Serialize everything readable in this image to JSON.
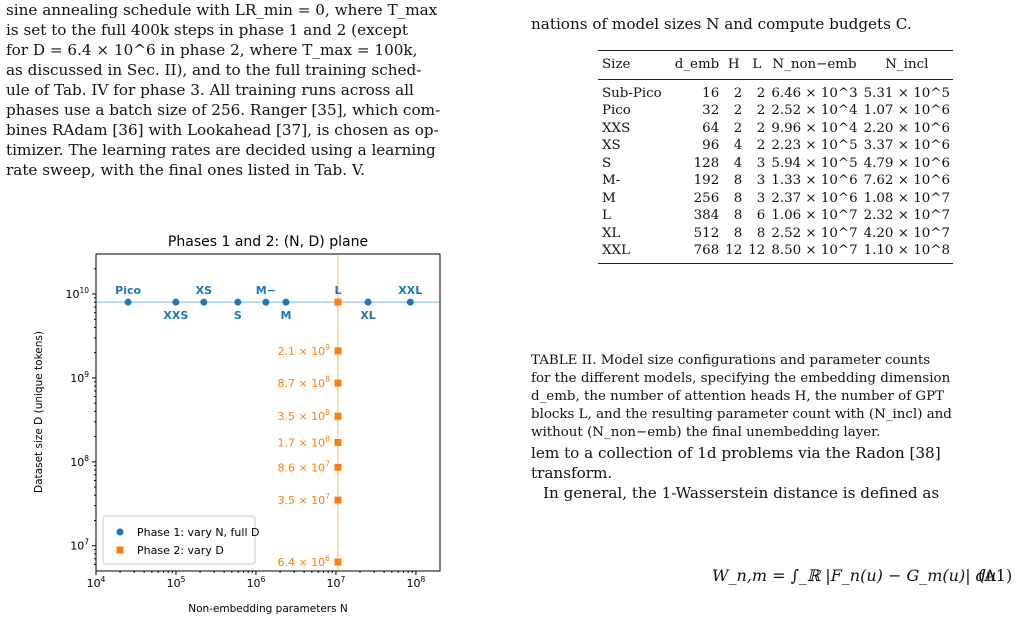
{
  "left_text": [
    "sine annealing schedule with LR_min = 0, where T_max",
    "is set to the full 400k steps in phase 1 and 2 (except",
    "for D = 6.4 × 10^6 in phase 2, where T_max = 100k,",
    "as discussed in Sec. II), and to the full training sched-",
    "ule of Tab. IV for phase 3. All training runs across all",
    "phases use a batch size of 256. Ranger [35], which com-",
    "bines RAdam [36] with Lookahead [37], is chosen as op-",
    "timizer. The learning rates are decided using a learning",
    "rate sweep, with the final ones listed in Tab. V."
  ],
  "right_top_text": "nations of model sizes N and compute budgets C.",
  "table": {
    "headers": [
      "Size",
      "d_emb",
      "H",
      "L",
      "N_non−emb",
      "N_incl"
    ],
    "rows": [
      [
        "Sub-Pico",
        "16",
        "2",
        "2",
        "6.46 × 10^3",
        "5.31 × 10^5"
      ],
      [
        "Pico",
        "32",
        "2",
        "2",
        "2.52 × 10^4",
        "1.07 × 10^6"
      ],
      [
        "XXS",
        "64",
        "2",
        "2",
        "9.96 × 10^4",
        "2.20 × 10^6"
      ],
      [
        "XS",
        "96",
        "4",
        "2",
        "2.23 × 10^5",
        "3.37 × 10^6"
      ],
      [
        "S",
        "128",
        "4",
        "3",
        "5.94 × 10^5",
        "4.79 × 10^6"
      ],
      [
        "M-",
        "192",
        "8",
        "3",
        "1.33 × 10^6",
        "7.62 × 10^6"
      ],
      [
        "M",
        "256",
        "8",
        "3",
        "2.37 × 10^6",
        "1.08 × 10^7"
      ],
      [
        "L",
        "384",
        "8",
        "6",
        "1.06 × 10^7",
        "2.32 × 10^7"
      ],
      [
        "XL",
        "512",
        "8",
        "8",
        "2.52 × 10^7",
        "4.20 × 10^7"
      ],
      [
        "XXL",
        "768",
        "12",
        "12",
        "8.50 × 10^7",
        "1.10 × 10^8"
      ]
    ]
  },
  "caption": [
    "TABLE II. Model size configurations and parameter counts",
    "for the different models, specifying the embedding dimension",
    "d_emb, the number of attention heads H, the number of GPT",
    "blocks L, and the resulting parameter count with (N_incl) and",
    "without (N_non−emb) the final unembedding layer."
  ],
  "right_bottom_text": [
    "lem to a collection of 1d problems via the Radon [38]",
    "transform.",
    "In general, the 1-Wasserstein distance is defined as"
  ],
  "equation": "W_n,m = ∫_ℝ |F_n(u) − G_m(u)| du",
  "equation_number": "(A1)",
  "chart_data": {
    "type": "scatter",
    "title": "Phases 1 and 2:  (N, D) plane",
    "xlabel": "Non-embedding parameters  N",
    "ylabel": "Dataset size  D  (unique tokens)",
    "xscale": "log",
    "yscale": "log",
    "xlim": [
      10000,
      200000000
    ],
    "ylim": [
      5000000,
      30000000000
    ],
    "xticks": [
      "10^4",
      "10^5",
      "10^6",
      "10^7",
      "10^8"
    ],
    "yticks": [
      "10^7",
      "10^8",
      "10^9",
      "10^10"
    ],
    "legend_position": "lower-left",
    "series": [
      {
        "name": "Phase 1: vary N, full D",
        "color": "#1f77b4",
        "marker": "circle",
        "points": [
          {
            "label": "Pico",
            "x": 25200,
            "y": 8000000000
          },
          {
            "label": "XXS",
            "x": 99600,
            "y": 8000000000
          },
          {
            "label": "XS",
            "x": 223000,
            "y": 8000000000
          },
          {
            "label": "S",
            "x": 594000,
            "y": 8000000000
          },
          {
            "label": "M−",
            "x": 1330000,
            "y": 8000000000
          },
          {
            "label": "M",
            "x": 2370000,
            "y": 8000000000
          },
          {
            "label": "L",
            "x": 10600000,
            "y": 8000000000
          },
          {
            "label": "XL",
            "x": 25200000,
            "y": 8000000000
          },
          {
            "label": "XXL",
            "x": 85000000,
            "y": 8000000000
          }
        ]
      },
      {
        "name": "Phase 2: vary D",
        "color": "#ff7f0e",
        "marker": "square",
        "points": [
          {
            "label": "",
            "x": 10600000,
            "y": 8000000000
          },
          {
            "label": "2.1 × 10^9",
            "x": 10600000,
            "y": 2100000000
          },
          {
            "label": "8.7 × 10^8",
            "x": 10600000,
            "y": 870000000
          },
          {
            "label": "3.5 × 10^8",
            "x": 10600000,
            "y": 350000000
          },
          {
            "label": "1.7 × 10^8",
            "x": 10600000,
            "y": 170000000
          },
          {
            "label": "8.6 × 10^7",
            "x": 10600000,
            "y": 86000000
          },
          {
            "label": "3.5 × 10^7",
            "x": 10600000,
            "y": 35000000
          },
          {
            "label": "6.4 × 10^6",
            "x": 10600000,
            "y": 6400000
          }
        ]
      }
    ]
  }
}
